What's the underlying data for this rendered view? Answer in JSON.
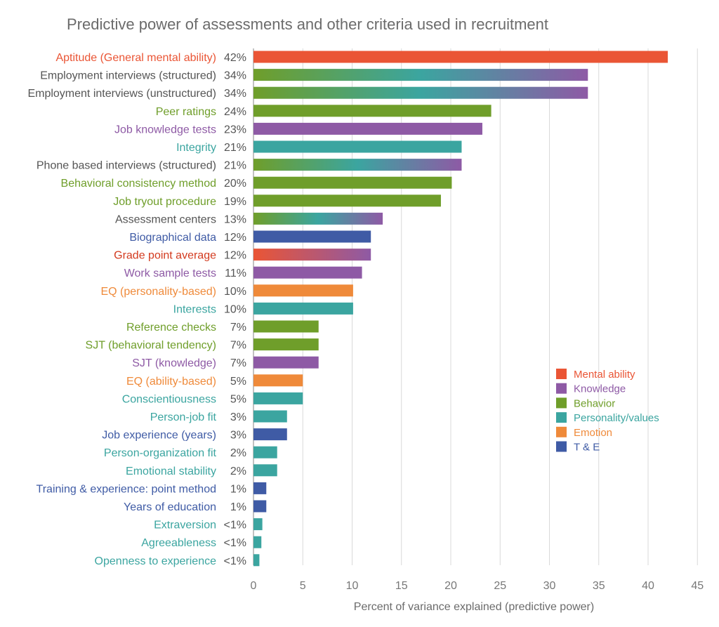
{
  "chart_data": {
    "type": "bar",
    "orientation": "horizontal",
    "title": "Predictive power of assessments and other criteria used in recruitment",
    "xlabel": "Percent of variance explained (predictive power)",
    "ylabel": "",
    "xlim": [
      0,
      45
    ],
    "xticks": [
      0,
      5,
      10,
      15,
      20,
      25,
      30,
      35,
      40,
      45
    ],
    "grid": "vertical",
    "legend_position": "right",
    "colors": {
      "mental": "#ea5535",
      "knowledge": "#8e5aa5",
      "behavior": "#6f9e2a",
      "personality": "#3ba5a0",
      "emotion": "#ef8a3a",
      "te": "#3f5ba5",
      "grey": "#555555",
      "grade_red": "#d33a1e"
    },
    "legend": [
      {
        "label": "Mental ability",
        "group": "mental",
        "color": "#ea5535"
      },
      {
        "label": "Knowledge",
        "group": "knowledge",
        "color": "#8e5aa5"
      },
      {
        "label": "Behavior",
        "group": "behavior",
        "color": "#6f9e2a"
      },
      {
        "label": "Personality/values",
        "group": "personality",
        "color": "#3ba5a0"
      },
      {
        "label": "Emotion",
        "group": "emotion",
        "color": "#ef8a3a"
      },
      {
        "label": "T & E",
        "group": "te",
        "color": "#3f5ba5"
      }
    ],
    "items": [
      {
        "label": "Aptitude (General mental ability)",
        "pct": "42%",
        "value": 42,
        "fill": [
          "mental"
        ],
        "text_color": "mental"
      },
      {
        "label": "Employment interviews (structured)",
        "pct": "34%",
        "value": 33.9,
        "fill": [
          "behavior",
          "personality",
          "knowledge"
        ],
        "text_color": "grey"
      },
      {
        "label": "Employment interviews (unstructured)",
        "pct": "34%",
        "value": 33.9,
        "fill": [
          "behavior",
          "personality",
          "knowledge"
        ],
        "text_color": "grey"
      },
      {
        "label": "Peer ratings",
        "pct": "24%",
        "value": 24.1,
        "fill": [
          "behavior"
        ],
        "text_color": "behavior"
      },
      {
        "label": "Job knowledge tests",
        "pct": "23%",
        "value": 23.2,
        "fill": [
          "knowledge"
        ],
        "text_color": "knowledge"
      },
      {
        "label": "Integrity",
        "pct": "21%",
        "value": 21.1,
        "fill": [
          "personality"
        ],
        "text_color": "personality"
      },
      {
        "label": "Phone based interviews (structured)",
        "pct": "21%",
        "value": 21.1,
        "fill": [
          "behavior",
          "personality",
          "knowledge"
        ],
        "text_color": "grey"
      },
      {
        "label": "Behavioral consistency method",
        "pct": "20%",
        "value": 20.1,
        "fill": [
          "behavior"
        ],
        "text_color": "behavior"
      },
      {
        "label": "Job tryout procedure",
        "pct": "19%",
        "value": 19.0,
        "fill": [
          "behavior"
        ],
        "text_color": "behavior"
      },
      {
        "label": "Assessment centers",
        "pct": "13%",
        "value": 13.1,
        "fill": [
          "behavior",
          "personality",
          "knowledge"
        ],
        "text_color": "grey"
      },
      {
        "label": "Biographical data",
        "pct": "12%",
        "value": 11.9,
        "fill": [
          "te"
        ],
        "text_color": "te"
      },
      {
        "label": "Grade point average",
        "pct": "12%",
        "value": 11.9,
        "fill": [
          "mental",
          "knowledge"
        ],
        "text_color": "grade_red"
      },
      {
        "label": "Work sample tests",
        "pct": "11%",
        "value": 11.0,
        "fill": [
          "knowledge"
        ],
        "text_color": "knowledge"
      },
      {
        "label": "EQ (personality-based)",
        "pct": "10%",
        "value": 10.1,
        "fill": [
          "emotion"
        ],
        "text_color": "emotion"
      },
      {
        "label": "Interests",
        "pct": "10%",
        "value": 10.1,
        "fill": [
          "personality"
        ],
        "text_color": "personality"
      },
      {
        "label": "Reference checks",
        "pct": "7%",
        "value": 6.6,
        "fill": [
          "behavior"
        ],
        "text_color": "behavior"
      },
      {
        "label": "SJT (behavioral tendency)",
        "pct": "7%",
        "value": 6.6,
        "fill": [
          "behavior"
        ],
        "text_color": "behavior"
      },
      {
        "label": "SJT (knowledge)",
        "pct": "7%",
        "value": 6.6,
        "fill": [
          "knowledge"
        ],
        "text_color": "knowledge"
      },
      {
        "label": "EQ (ability-based)",
        "pct": "5%",
        "value": 5.0,
        "fill": [
          "emotion"
        ],
        "text_color": "emotion"
      },
      {
        "label": "Conscientiousness",
        "pct": "5%",
        "value": 5.0,
        "fill": [
          "personality"
        ],
        "text_color": "personality"
      },
      {
        "label": "Person-job fit",
        "pct": "3%",
        "value": 3.4,
        "fill": [
          "personality"
        ],
        "text_color": "personality"
      },
      {
        "label": "Job experience (years)",
        "pct": "3%",
        "value": 3.4,
        "fill": [
          "te"
        ],
        "text_color": "te"
      },
      {
        "label": "Person-organization fit",
        "pct": "2%",
        "value": 2.4,
        "fill": [
          "personality"
        ],
        "text_color": "personality"
      },
      {
        "label": "Emotional stability",
        "pct": "2%",
        "value": 2.4,
        "fill": [
          "personality"
        ],
        "text_color": "personality"
      },
      {
        "label": "Training & experience: point method",
        "pct": "1%",
        "value": 1.3,
        "fill": [
          "te"
        ],
        "text_color": "te"
      },
      {
        "label": "Years of education",
        "pct": "1%",
        "value": 1.3,
        "fill": [
          "te"
        ],
        "text_color": "te"
      },
      {
        "label": "Extraversion",
        "pct": "<1%",
        "value": 0.9,
        "fill": [
          "personality"
        ],
        "text_color": "personality"
      },
      {
        "label": "Agreeableness",
        "pct": "<1%",
        "value": 0.8,
        "fill": [
          "personality"
        ],
        "text_color": "personality"
      },
      {
        "label": "Openness to experience",
        "pct": "<1%",
        "value": 0.6,
        "fill": [
          "personality"
        ],
        "text_color": "personality"
      }
    ]
  }
}
